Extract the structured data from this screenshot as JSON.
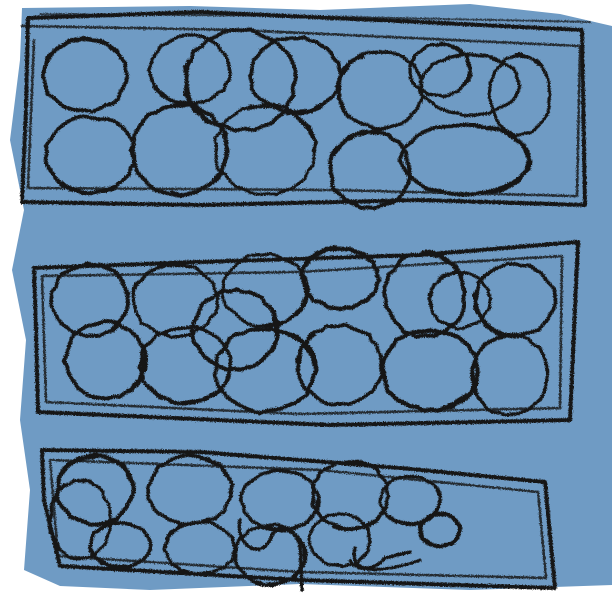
{
  "colors": {
    "background": "#ffffff",
    "fill": "#6f9bc4",
    "stroke": "#151515"
  },
  "sketch": {
    "rows": [
      {
        "name": "top",
        "circle_count": 13
      },
      {
        "name": "middle",
        "circle_count": 14
      },
      {
        "name": "bottom",
        "circle_count": 11
      }
    ]
  }
}
